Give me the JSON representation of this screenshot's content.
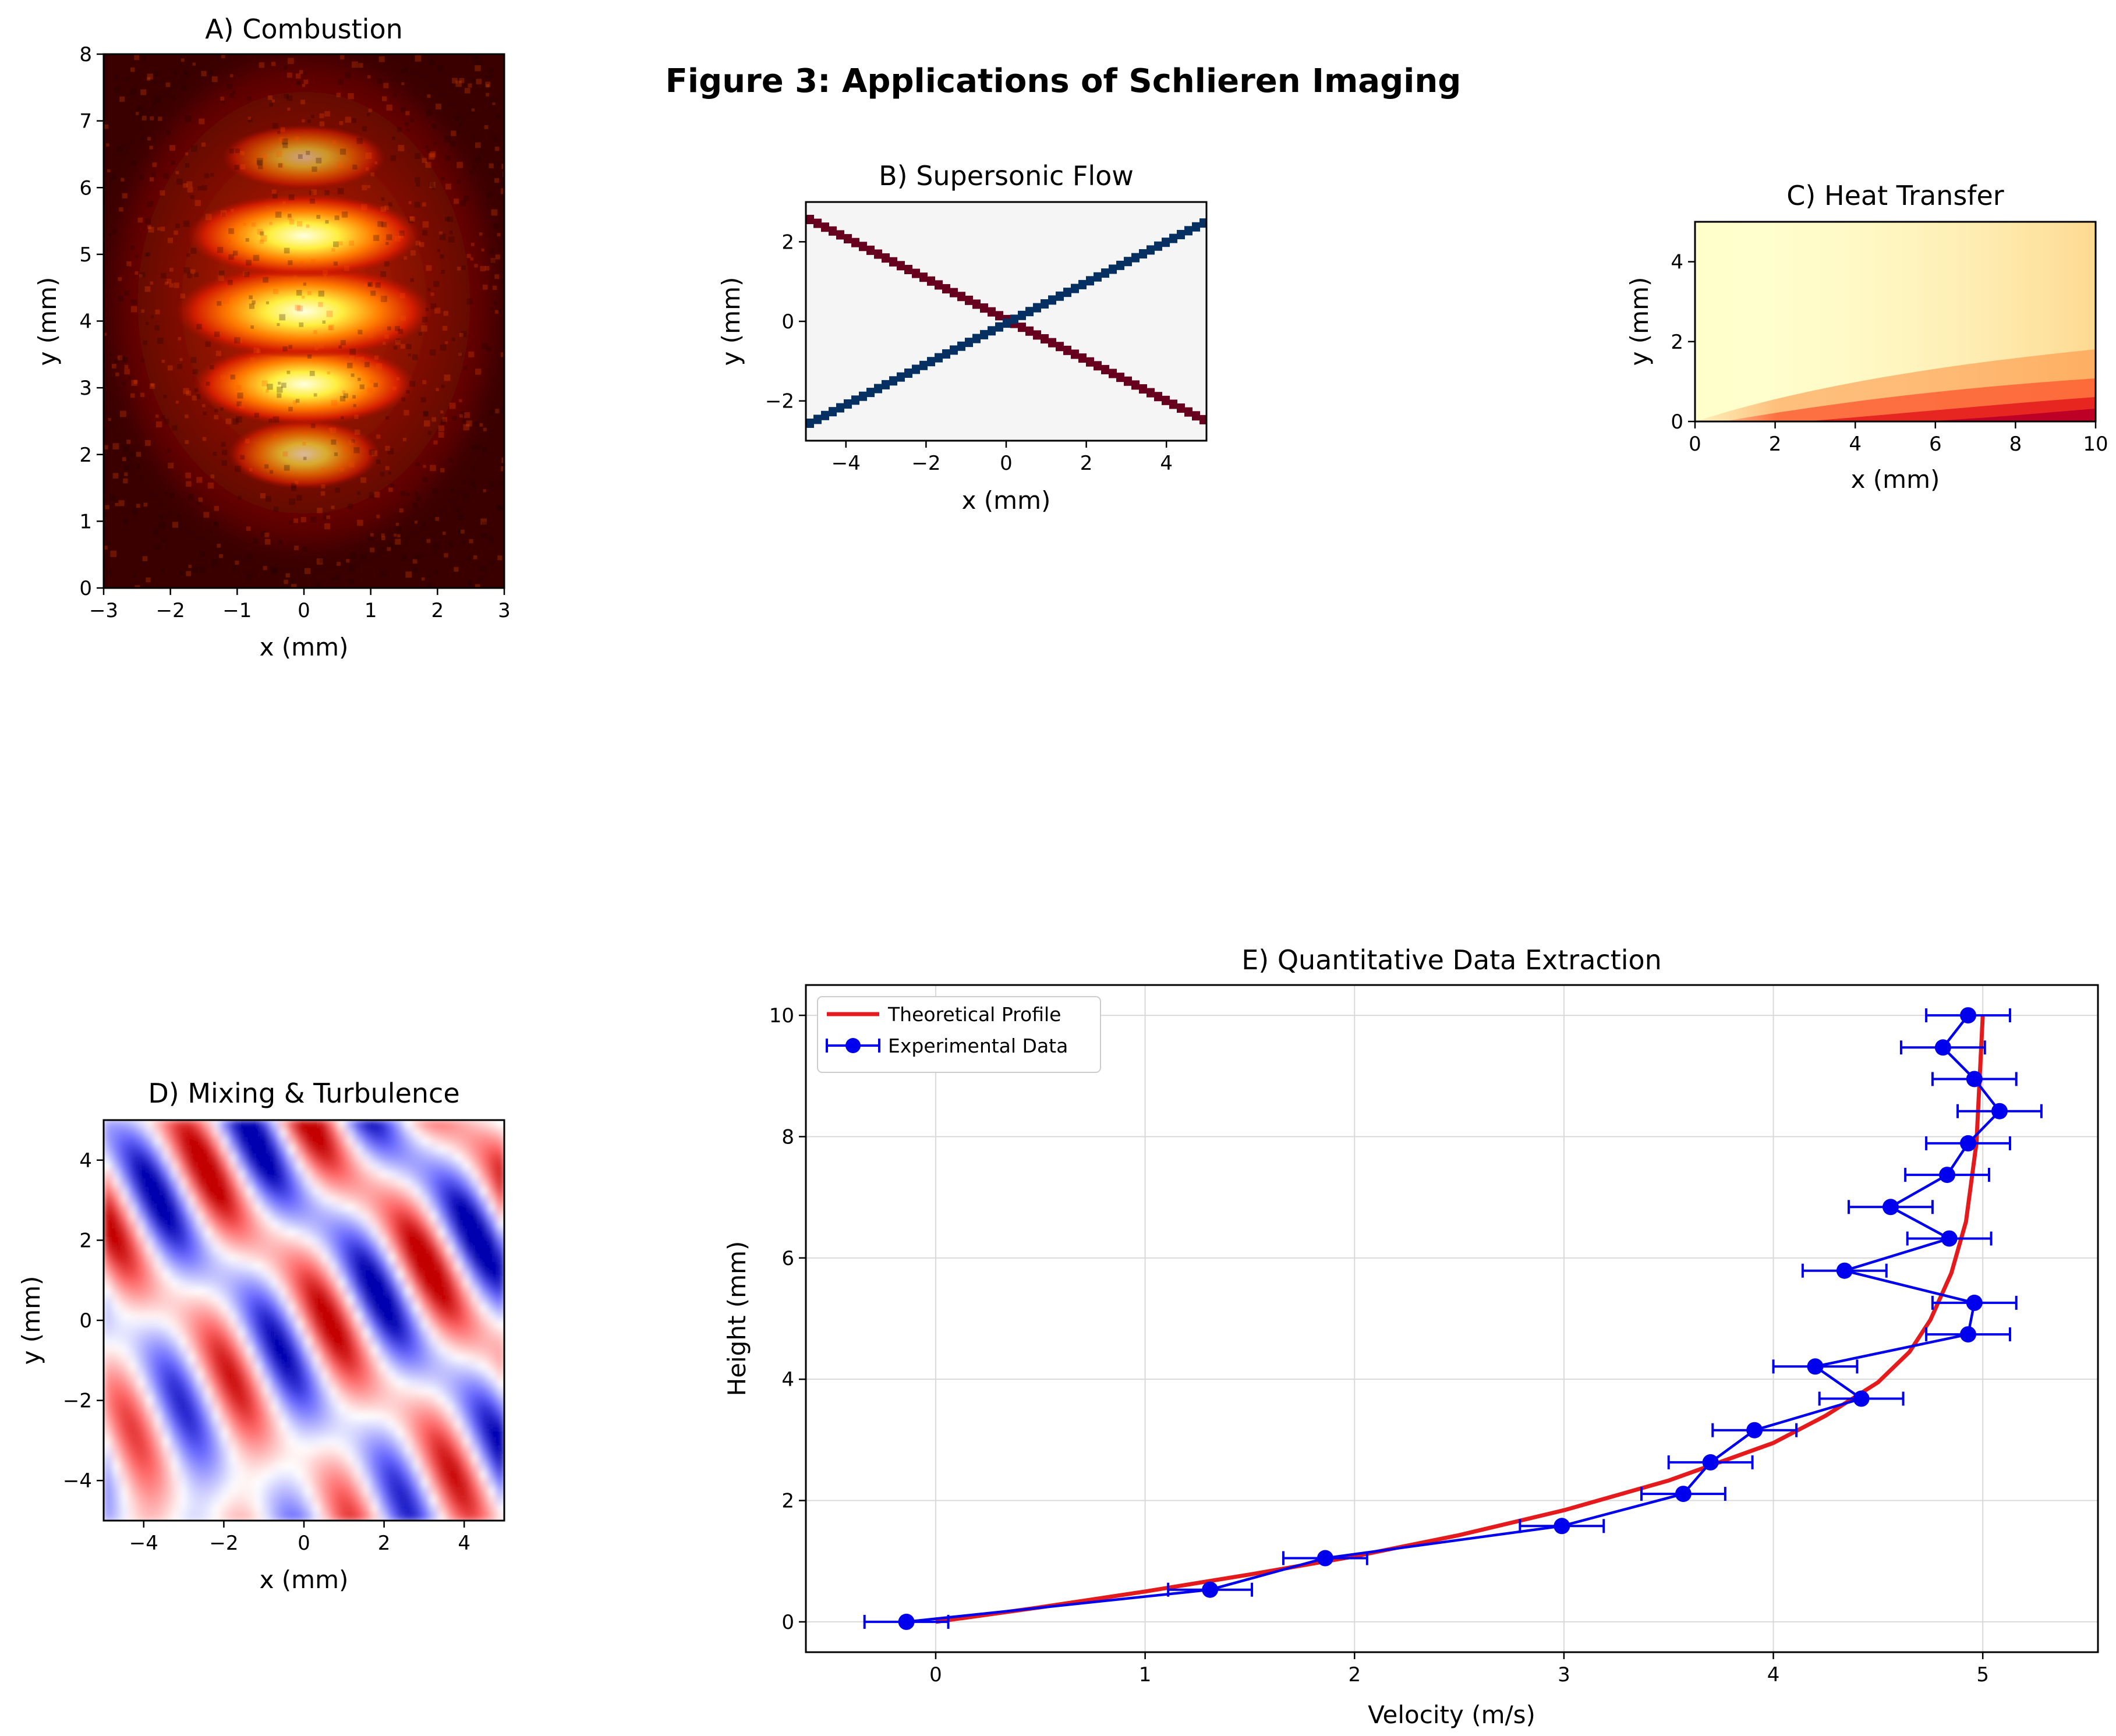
{
  "suptitle": "Figure 3: Applications of Schlieren Imaging",
  "colors": {
    "theory": "#e41a1c",
    "experimental": "#0000ee",
    "grid": "#d9d9d9",
    "hot_dark": "#100000",
    "hot_bright": "#ffffd0",
    "rdbu_red": "#67001f",
    "rdbu_blue": "#053061",
    "rdbu_mid": "#f5f5f5",
    "seismic_red": "#b00000",
    "seismic_blue": "#00008f"
  },
  "panels": {
    "a": {
      "title": "A) Combustion",
      "xlabel": "x (mm)",
      "ylabel": "y (mm)",
      "xlim": [
        -3,
        3
      ],
      "ylim": [
        0,
        8
      ],
      "xticks": [
        "−3",
        "−2",
        "−1",
        "0",
        "1",
        "2",
        "3"
      ],
      "yticks": [
        "0",
        "1",
        "2",
        "3",
        "4",
        "5",
        "6",
        "7",
        "8"
      ],
      "colormap": "hot"
    },
    "b": {
      "title": "B) Supersonic Flow",
      "xlabel": "x (mm)",
      "ylabel": "y (mm)",
      "xlim": [
        -5,
        5
      ],
      "ylim": [
        -3,
        3
      ],
      "xticks": [
        "−4",
        "−2",
        "0",
        "2",
        "4"
      ],
      "yticks": [
        "−2",
        "0",
        "2"
      ],
      "colormap": "RdBu"
    },
    "c": {
      "title": "C) Heat Transfer",
      "xlabel": "x (mm)",
      "ylabel": "y (mm)",
      "xlim": [
        0,
        10
      ],
      "ylim": [
        0,
        5
      ],
      "xticks": [
        "0",
        "2",
        "4",
        "6",
        "8",
        "10"
      ],
      "yticks": [
        "0",
        "2",
        "4"
      ],
      "colormap": "YlOrRd"
    },
    "d": {
      "title": "D) Mixing & Turbulence",
      "xlabel": "x (mm)",
      "ylabel": "y (mm)",
      "xlim": [
        -5,
        5
      ],
      "ylim": [
        -5,
        5
      ],
      "xticks": [
        "−4",
        "−2",
        "0",
        "2",
        "4"
      ],
      "yticks": [
        "−4",
        "−2",
        "0",
        "2",
        "4"
      ],
      "colormap": "seismic"
    },
    "e": {
      "title": "E) Quantitative Data Extraction",
      "xlabel": "Velocity (m/s)",
      "ylabel": "Height (mm)",
      "xticks": [
        "0",
        "1",
        "2",
        "3",
        "4",
        "5"
      ],
      "yticks": [
        "0",
        "2",
        "4",
        "6",
        "8",
        "10"
      ],
      "legend": [
        "Theoretical Profile",
        "Experimental Data"
      ]
    }
  },
  "chart_data": {
    "type": "line",
    "title": "E) Quantitative Data Extraction",
    "xlabel": "Velocity (m/s)",
    "ylabel": "Height (mm)",
    "xlim": [
      -0.62,
      5.55
    ],
    "ylim": [
      -0.5,
      10.5
    ],
    "grid": true,
    "legend_position": "top-left",
    "series": [
      {
        "name": "Theoretical Profile",
        "kind": "line",
        "x": [
          0,
          0.5,
          1.0,
          1.5,
          2.0,
          2.5,
          3.0,
          3.5,
          4.0,
          4.25,
          4.5,
          4.65,
          4.75,
          4.85,
          4.92,
          4.97,
          5.0
        ],
        "y": [
          0,
          0.24,
          0.5,
          0.78,
          1.08,
          1.43,
          1.84,
          2.33,
          2.95,
          3.4,
          3.95,
          4.45,
          4.98,
          5.75,
          6.6,
          7.9,
          10.0
        ]
      },
      {
        "name": "Experimental Data",
        "kind": "errorbar",
        "x": [
          -0.14,
          1.31,
          1.86,
          2.99,
          3.57,
          3.7,
          3.91,
          4.42,
          4.2,
          4.93,
          4.96,
          4.34,
          4.84,
          4.56,
          4.83,
          4.93,
          5.08,
          4.96,
          4.81,
          4.93
        ],
        "y": [
          0.0,
          0.53,
          1.05,
          1.58,
          2.11,
          2.63,
          3.16,
          3.68,
          4.21,
          4.74,
          5.26,
          5.79,
          6.32,
          6.84,
          7.37,
          7.89,
          8.42,
          8.95,
          9.47,
          10.0
        ],
        "xerr": [
          0.2,
          0.2,
          0.2,
          0.2,
          0.2,
          0.2,
          0.2,
          0.2,
          0.2,
          0.2,
          0.2,
          0.2,
          0.2,
          0.2,
          0.2,
          0.2,
          0.2,
          0.2,
          0.2,
          0.2
        ]
      }
    ]
  }
}
